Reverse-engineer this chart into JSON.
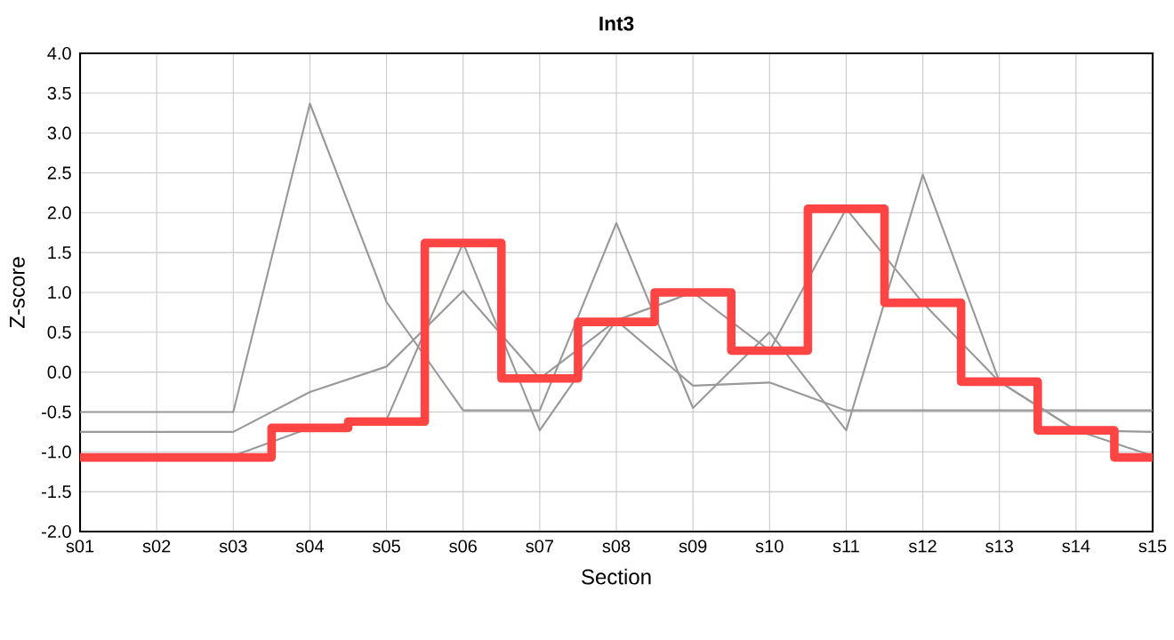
{
  "chart_data": {
    "type": "line",
    "title": "Int3",
    "xlabel": "Section",
    "ylabel": "Z-score",
    "categories": [
      "s01",
      "s02",
      "s03",
      "s04",
      "s05",
      "s06",
      "s07",
      "s08",
      "s09",
      "s10",
      "s11",
      "s12",
      "s13",
      "s14",
      "s15"
    ],
    "series": [
      {
        "color": "#999999",
        "values": [
          -0.5,
          -0.5,
          -0.5,
          3.37,
          0.88,
          -0.48,
          -0.48,
          1.87,
          -0.45,
          0.5,
          -0.73,
          2.48,
          -0.12,
          -0.73,
          -0.75
        ]
      },
      {
        "color": "#999999",
        "values": [
          -0.75,
          -0.75,
          -0.75,
          -0.25,
          0.07,
          1.02,
          -0.08,
          0.65,
          -0.17,
          -0.13,
          -0.48,
          -0.48,
          -0.48,
          -0.48,
          -0.48
        ]
      },
      {
        "color": "#999999",
        "values": [
          -1.05,
          -1.05,
          -1.05,
          -0.7,
          -0.6,
          1.62,
          -0.73,
          0.65,
          1.0,
          0.27,
          2.05,
          0.87,
          -0.12,
          -0.73,
          -1.05
        ]
      },
      {
        "type": "step",
        "color": "#ff4444",
        "values": [
          -1.07,
          -1.07,
          -1.07,
          -0.7,
          -0.62,
          1.62,
          -0.08,
          0.63,
          1.0,
          0.27,
          2.05,
          0.87,
          -0.12,
          -0.73,
          -1.07
        ]
      }
    ],
    "ylim": [
      -2.0,
      4.0
    ],
    "yticks": [
      {
        "value": -2.0,
        "label": "-2.0"
      },
      {
        "value": -1.5,
        "label": "-1.5"
      },
      {
        "value": -1.0,
        "label": "-1.0"
      },
      {
        "value": -0.5,
        "label": "-0.5"
      },
      {
        "value": 0,
        "label": "0.0"
      },
      {
        "value": 0.5,
        "label": "0.5"
      },
      {
        "value": 1.0,
        "label": "1.0"
      },
      {
        "value": 1.5,
        "label": "1.5"
      },
      {
        "value": 2.0,
        "label": "2.0"
      },
      {
        "value": 2.5,
        "label": "2.5"
      },
      {
        "value": 3.0,
        "label": "3.0"
      },
      {
        "value": 3.5,
        "label": "3.5"
      },
      {
        "value": 4.0,
        "label": "4.0"
      }
    ],
    "grid": true
  }
}
